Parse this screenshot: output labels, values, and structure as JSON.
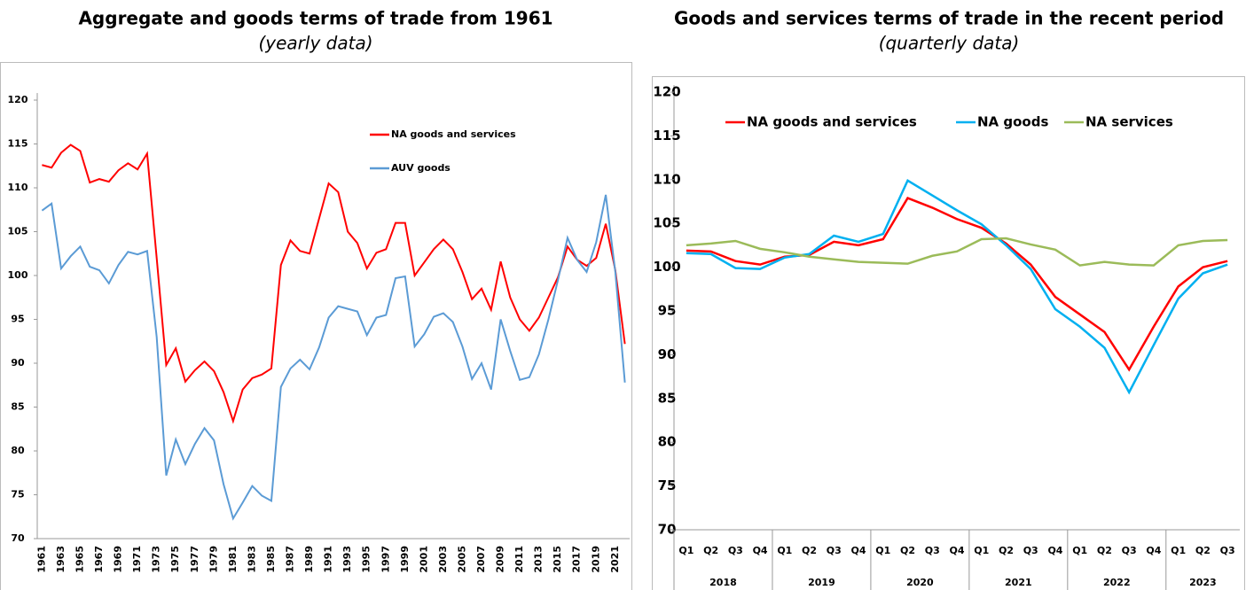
{
  "chart_data": [
    {
      "type": "line",
      "title": "Aggregate and goods terms of trade from 1961",
      "subtitle": "(yearly data)",
      "categories": [
        "1961",
        null,
        "1963",
        null,
        "1965",
        null,
        "1967",
        null,
        "1969",
        null,
        "1971",
        null,
        "1973",
        null,
        "1975",
        null,
        "1977",
        null,
        "1979",
        null,
        "1981",
        null,
        "1983",
        null,
        "1985",
        null,
        "1987",
        null,
        "1989",
        null,
        "1991",
        null,
        "1993",
        null,
        "1995",
        null,
        "1997",
        null,
        "1999",
        null,
        "2001",
        null,
        "2003",
        null,
        "2005",
        null,
        "2007",
        null,
        "2009",
        null,
        "2011",
        null,
        "2013",
        null,
        "2015",
        null,
        "2017",
        null,
        "2019",
        null,
        "2021",
        null
      ],
      "series": [
        {
          "name": "NA goods and services",
          "color": "#ff0000",
          "values": [
            112.6,
            112.3,
            114,
            114.9,
            114.2,
            110.6,
            111,
            110.7,
            112,
            112.8,
            112.1,
            113.9,
            102,
            89.8,
            91.7,
            87.9,
            89.2,
            90.2,
            89.1,
            86.7,
            83.4,
            87,
            88.3,
            88.7,
            89.4,
            101.2,
            104,
            102.8,
            102.5,
            106.5,
            110.5,
            109.5,
            105,
            103.7,
            100.8,
            102.6,
            103,
            106,
            106,
            100,
            101.5,
            103,
            104.1,
            103,
            100.4,
            97.3,
            98.5,
            96.1,
            101.6,
            97.5,
            95,
            93.7,
            95.2,
            97.5,
            99.8,
            103.3,
            101.8,
            101.1,
            102,
            105.9,
            100.6,
            92.2
          ]
        },
        {
          "name": "AUV goods",
          "color": "#5b9bd5",
          "values": [
            107.4,
            108.2,
            100.8,
            102.2,
            103.3,
            101,
            100.6,
            99.1,
            101.2,
            102.7,
            102.4,
            102.8,
            93,
            77.2,
            81.3,
            78.5,
            80.8,
            82.6,
            81.2,
            76.2,
            72.3,
            74.1,
            76,
            74.9,
            74.3,
            87.3,
            89.4,
            90.4,
            89.3,
            91.8,
            95.2,
            96.5,
            96.2,
            95.9,
            93.2,
            95.2,
            95.5,
            99.7,
            99.9,
            91.9,
            93.3,
            95.3,
            95.7,
            94.7,
            91.9,
            88.2,
            90,
            87,
            95,
            91.4,
            88.1,
            88.4,
            91,
            95,
            99.5,
            104.3,
            101.8,
            100.4,
            103.8,
            109.2,
            100.4,
            87.8
          ]
        }
      ],
      "ylim": [
        70,
        120
      ],
      "yticks": [
        70,
        75,
        80,
        85,
        90,
        95,
        100,
        105,
        110,
        115,
        120
      ],
      "grid": false,
      "legend": "upper right"
    },
    {
      "type": "line",
      "title": "Goods and services terms of trade in the recent period",
      "subtitle": "(quarterly data)",
      "categories": [
        "Q1",
        "Q2",
        "Q3",
        "Q4",
        "Q1",
        "Q2",
        "Q3",
        "Q4",
        "Q1",
        "Q2",
        "Q3",
        "Q4",
        "Q1",
        "Q2",
        "Q3",
        "Q4",
        "Q1",
        "Q2",
        "Q3",
        "Q4",
        "Q1",
        "Q2",
        "Q3"
      ],
      "groups": [
        "2018",
        "2019",
        "2020",
        "2021",
        "2022",
        "2023"
      ],
      "series": [
        {
          "name": "NA goods and services",
          "color": "#ff0000",
          "values": [
            101.9,
            101.8,
            100.7,
            100.3,
            101.2,
            101.4,
            102.9,
            102.5,
            103.2,
            107.9,
            106.8,
            105.5,
            104.5,
            102.7,
            100.3,
            96.6,
            94.6,
            92.6,
            88.3,
            93.2,
            97.8,
            100,
            100.7
          ]
        },
        {
          "name": "NA goods",
          "color": "#00b0f0",
          "values": [
            101.6,
            101.5,
            99.9,
            99.8,
            101.1,
            101.5,
            103.6,
            102.9,
            103.8,
            109.9,
            108.2,
            106.5,
            104.9,
            102.5,
            99.8,
            95.2,
            93.2,
            90.8,
            85.7,
            91.1,
            96.4,
            99.3,
            100.3
          ]
        },
        {
          "name": "NA services",
          "color": "#9bbb59",
          "values": [
            102.5,
            102.7,
            103,
            102.1,
            101.7,
            101.2,
            100.9,
            100.6,
            100.5,
            100.4,
            101.3,
            101.8,
            103.2,
            103.3,
            102.6,
            102,
            100.2,
            100.6,
            100.3,
            100.2,
            102.5,
            103,
            103.1
          ]
        }
      ],
      "ylim": [
        70,
        120
      ],
      "yticks": [
        70,
        75,
        80,
        85,
        90,
        95,
        100,
        105,
        110,
        115,
        120
      ],
      "grid": false,
      "legend": "top"
    }
  ]
}
